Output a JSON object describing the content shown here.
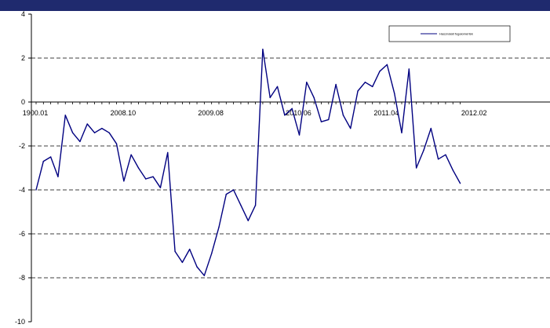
{
  "chart_data": {
    "type": "line",
    "title": "",
    "xlabel": "",
    "ylabel": "",
    "ylim": [
      -10,
      4
    ],
    "yticks": [
      4,
      2,
      0,
      -2,
      -4,
      -6,
      -8,
      -10
    ],
    "xtick_labels": [
      "1900.01",
      "2008.10",
      "2009.08",
      "2010.06",
      "2011.04",
      "2012.02"
    ],
    "grid": "horizontal dashed",
    "legend_position": "top-right",
    "colors": {
      "line": "#000080",
      "top_bar": "#1f2a6e",
      "grid": "#000000"
    },
    "series": [
      {
        "name": "Használati fogalomérték",
        "values": [
          -4.0,
          -2.7,
          -2.5,
          -3.4,
          -0.6,
          -1.4,
          -1.8,
          -1.0,
          -1.4,
          -1.2,
          -1.4,
          -1.9,
          -3.6,
          -2.4,
          -3.0,
          -3.5,
          -3.4,
          -3.9,
          -2.3,
          -6.8,
          -7.3,
          -6.7,
          -7.5,
          -7.9,
          -6.9,
          -5.7,
          -4.2,
          -4.0,
          -4.7,
          -5.4,
          -4.7,
          2.4,
          0.2,
          0.7,
          -0.6,
          -0.3,
          -1.5,
          0.9,
          0.2,
          -0.9,
          -0.8,
          0.8,
          -0.6,
          -1.2,
          0.5,
          0.9,
          0.7,
          1.4,
          1.7,
          0.4,
          -1.4,
          1.5,
          -3.0,
          -2.2,
          -1.2,
          -2.6,
          -2.4,
          -3.1,
          -3.7
        ]
      }
    ]
  }
}
